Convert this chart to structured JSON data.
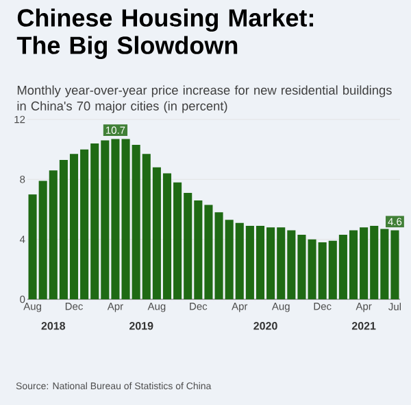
{
  "chart_data": {
    "type": "bar",
    "title": "Chinese Housing Market: The Big Slowdown",
    "subtitle": "Monthly year-over-year price increase for new residential buildings in China's 70 major cities (in percent)",
    "categories": [
      "Aug",
      null,
      null,
      null,
      "Dec",
      null,
      null,
      null,
      "Apr",
      null,
      null,
      null,
      "Aug",
      null,
      null,
      null,
      "Dec",
      null,
      null,
      null,
      "Apr",
      null,
      null,
      null,
      "Aug",
      null,
      null,
      null,
      "Dec",
      null,
      null,
      null,
      "Apr",
      null,
      null,
      "Jul"
    ],
    "values": [
      7.0,
      7.9,
      8.6,
      9.3,
      9.7,
      10.0,
      10.4,
      10.6,
      10.7,
      10.7,
      10.3,
      9.7,
      8.8,
      8.4,
      7.8,
      7.1,
      6.6,
      6.3,
      5.8,
      5.3,
      5.1,
      4.9,
      4.9,
      4.8,
      4.8,
      4.6,
      4.3,
      4.0,
      3.8,
      3.9,
      4.3,
      4.6,
      4.8,
      4.9,
      4.7,
      4.6
    ],
    "value_labels": [
      null,
      null,
      null,
      null,
      null,
      null,
      null,
      null,
      "10.7",
      null,
      null,
      null,
      null,
      null,
      null,
      null,
      null,
      null,
      null,
      null,
      null,
      null,
      null,
      null,
      null,
      null,
      null,
      null,
      null,
      null,
      null,
      null,
      null,
      null,
      null,
      "4.6"
    ],
    "color": "#1f6a14",
    "ylim": [
      0,
      12
    ],
    "yticks": [
      0,
      4,
      8,
      12
    ],
    "grid": "y",
    "annotations": [
      "2018",
      "2019",
      "2020",
      "2021",
      "Source: National Bureau of Statistics of China"
    ]
  }
}
